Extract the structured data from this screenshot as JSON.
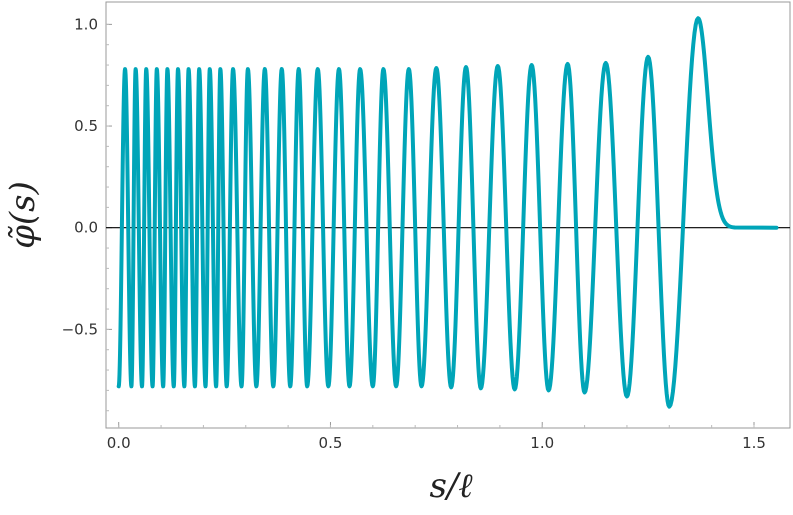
{
  "chart_data": {
    "type": "line",
    "title": "",
    "xlabel": "s/ℓ",
    "ylabel": "φ̃(s)",
    "xlim": [
      -0.03,
      1.585
    ],
    "ylim": [
      -0.985,
      1.11
    ],
    "x_ticks": [
      0.0,
      0.5,
      1.0,
      1.5
    ],
    "x_tick_labels": [
      "0.0",
      "0.5",
      "1.0",
      "1.5"
    ],
    "y_ticks": [
      -0.5,
      0.0,
      0.5,
      1.0
    ],
    "y_tick_labels": [
      "−0.5",
      "0.0",
      "0.5",
      "1.0"
    ],
    "grid": false,
    "legend": "none",
    "zero_line": true,
    "series": [
      {
        "color": "#00a5b8",
        "description_of_shape": "oscillation with increasing period; amplitude about 0.78 for small s, growing toward the right; final negative trough near -0.88 at s≈1.30, peak near 1.03 at s≈1.37, decays to 0 by s≈1.47 and stays flat to s≈1.55",
        "x_end": 1.553,
        "x_cutoff": 1.455,
        "amplitude_base": 0.78,
        "crest_positions": [
          0.015,
          0.04,
          0.065,
          0.09,
          0.115,
          0.14,
          0.165,
          0.19,
          0.215,
          0.24,
          0.27,
          0.305,
          0.345,
          0.385,
          0.425,
          0.47,
          0.52,
          0.57,
          0.625,
          0.685,
          0.75,
          0.82,
          0.895,
          0.975,
          1.06,
          1.15,
          1.25,
          1.368
        ],
        "trough_positions": [
          0.0,
          0.03,
          0.055,
          0.08,
          0.105,
          0.13,
          0.155,
          0.18,
          0.205,
          0.23,
          0.255,
          0.29,
          0.325,
          0.365,
          0.405,
          0.445,
          0.495,
          0.545,
          0.6,
          0.655,
          0.715,
          0.785,
          0.855,
          0.935,
          1.015,
          1.1,
          1.2,
          1.3
        ],
        "crest_values": [
          0.78,
          0.78,
          0.78,
          0.78,
          0.78,
          0.78,
          0.78,
          0.78,
          0.78,
          0.78,
          0.78,
          0.78,
          0.78,
          0.78,
          0.78,
          0.78,
          0.78,
          0.78,
          0.78,
          0.78,
          0.785,
          0.79,
          0.795,
          0.8,
          0.805,
          0.81,
          0.84,
          1.03
        ],
        "trough_values": [
          -0.78,
          -0.78,
          -0.78,
          -0.78,
          -0.78,
          -0.78,
          -0.78,
          -0.78,
          -0.78,
          -0.78,
          -0.78,
          -0.78,
          -0.78,
          -0.78,
          -0.78,
          -0.78,
          -0.78,
          -0.78,
          -0.78,
          -0.78,
          -0.78,
          -0.785,
          -0.79,
          -0.795,
          -0.8,
          -0.81,
          -0.83,
          -0.88
        ]
      }
    ]
  }
}
